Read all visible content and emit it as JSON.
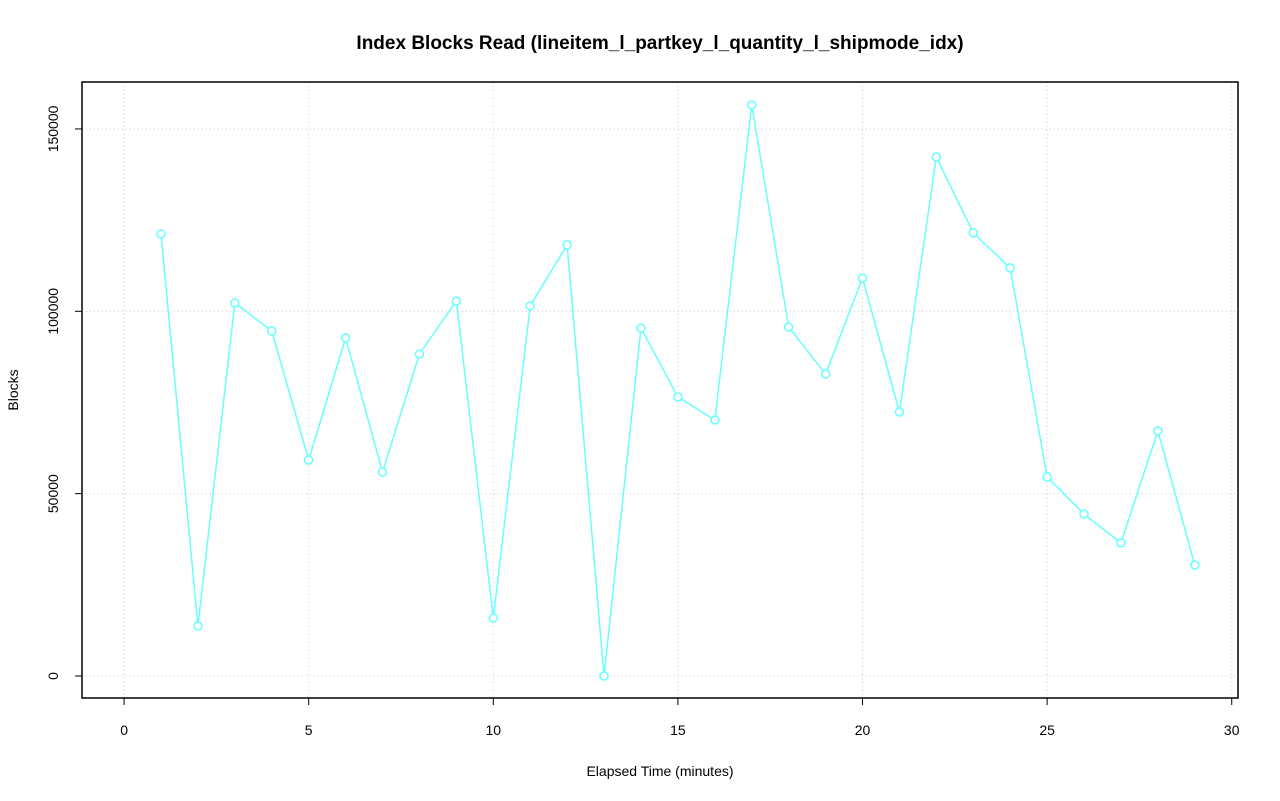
{
  "chart_data": {
    "type": "line",
    "title": "Index Blocks Read (lineitem_l_partkey_l_quantity_l_shipmode_idx)",
    "x_label": "Elapsed Time (minutes)",
    "y_label": "Blocks",
    "x": [
      1,
      2,
      3,
      4,
      5,
      6,
      7,
      8,
      9,
      10,
      11,
      12,
      13,
      14,
      15,
      16,
      17,
      18,
      19,
      20,
      21,
      22,
      23,
      24,
      25,
      26,
      27,
      28,
      29
    ],
    "series": [
      {
        "name": "Blocks",
        "color": "#66ffff",
        "values": [
          121200,
          13700,
          102300,
          94600,
          59200,
          92700,
          55900,
          88300,
          102800,
          15900,
          101500,
          118200,
          0,
          95400,
          76500,
          70200,
          156600,
          95700,
          82800,
          109100,
          72400,
          142300,
          121500,
          111900,
          54600,
          44400,
          36500,
          67200,
          30400
        ]
      }
    ],
    "xlim": [
      -1.14,
      30.17
    ],
    "xticks": [
      0,
      5,
      10,
      15,
      20,
      25,
      30
    ],
    "ylim": [
      -6030,
      162870
    ],
    "yticks": [
      0,
      50000,
      100000,
      150000
    ],
    "grid": true
  }
}
